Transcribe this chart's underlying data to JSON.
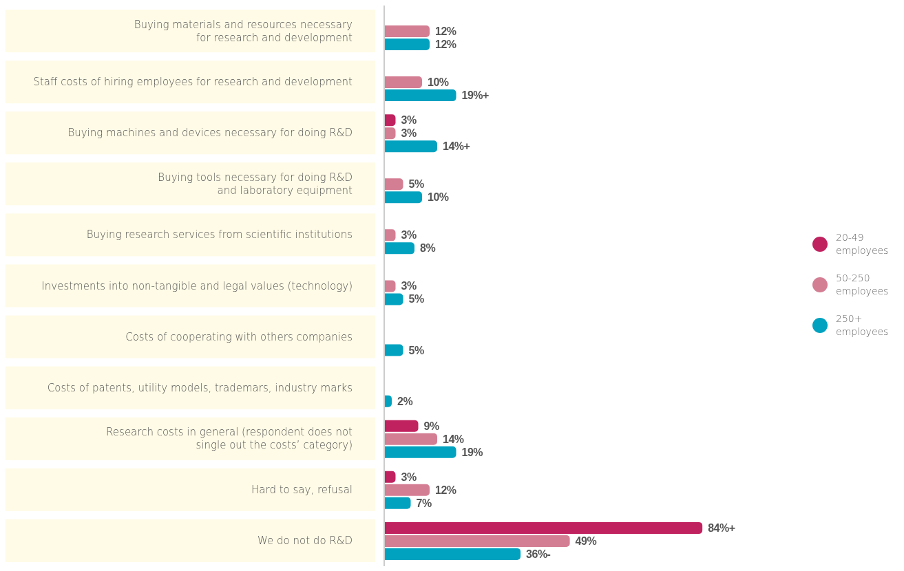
{
  "chart_data": {
    "type": "bar",
    "orientation": "horizontal",
    "categories": [
      "Buying materials and resources necessary\nfor research and development",
      "Staff costs of hiring employees for research and development",
      "Buying machines and devices necessary for doing R&D",
      "Buying tools necessary for doing R&D\nand laboratory equipment",
      "Buying research services from scientific institutions",
      "Investments into non-tangible and legal values (technology)",
      "Costs of cooperating with others companies",
      "Costs of patents, utility models, trademars, industry marks",
      "Research costs in general (respondent does not\nsingle out the costs’ category)",
      "Hard to say, refusal",
      "We do not do R&D"
    ],
    "series": [
      {
        "name": "20-49\nemployees",
        "color": "#c0225f",
        "values": [
          null,
          null,
          3,
          null,
          null,
          null,
          null,
          null,
          9,
          3,
          84
        ],
        "value_labels": [
          null,
          null,
          "3%",
          null,
          null,
          null,
          null,
          null,
          "9%",
          "3%",
          "84%+"
        ]
      },
      {
        "name": "50-250\nemployees",
        "color": "#d47e93",
        "values": [
          12,
          10,
          3,
          5,
          3,
          3,
          null,
          null,
          14,
          12,
          49
        ],
        "value_labels": [
          "12%",
          "10%",
          "3%",
          "5%",
          "3%",
          "3%",
          null,
          null,
          "14%",
          "12%",
          "49%"
        ]
      },
      {
        "name": "250+\nemployees",
        "color": "#00a2c0",
        "values": [
          12,
          19,
          14,
          10,
          8,
          5,
          5,
          2,
          19,
          7,
          36
        ],
        "value_labels": [
          "12%",
          "19%+",
          "14%+",
          "10%",
          "8%",
          "5%",
          "5%",
          "2%",
          "19%",
          "7%",
          "36%-"
        ]
      }
    ],
    "tick_labels": "y",
    "grid": false,
    "legend": "right"
  }
}
